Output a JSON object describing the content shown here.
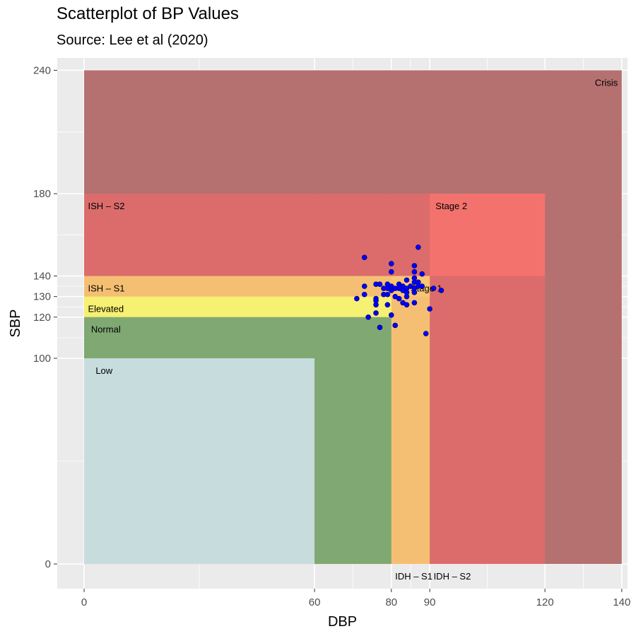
{
  "chart_data": {
    "type": "scatter",
    "title": "Scatterplot of BP Values",
    "subtitle": "Source: Lee et al (2020)",
    "xlabel": "DBP",
    "ylabel": "SBP",
    "xlim": [
      -7,
      141.5
    ],
    "ylim": [
      -12,
      246
    ],
    "x_ticks": [
      0,
      60,
      80,
      90,
      120,
      140
    ],
    "y_ticks": [
      0,
      100,
      120,
      130,
      140,
      180,
      240
    ],
    "grid": true,
    "legend": "none",
    "regions": [
      {
        "label": "Crisis",
        "x": [
          0,
          140
        ],
        "y": [
          0,
          240
        ],
        "color": "#b06565",
        "label_at": [
          133,
          234
        ]
      },
      {
        "label": "ISH – S2",
        "x": [
          0,
          120
        ],
        "y": [
          0,
          180
        ],
        "color": "#e06b6b",
        "label_at": [
          1,
          174
        ]
      },
      {
        "label": "Stage 2",
        "x": [
          90,
          120
        ],
        "y": [
          140,
          180
        ],
        "color": "#f5736f",
        "label_at": [
          91.5,
          174
        ]
      },
      {
        "label": "ISH – S1",
        "x": [
          0,
          90
        ],
        "y": [
          0,
          140
        ],
        "color": "#f6c774",
        "label_at": [
          1,
          134
        ]
      },
      {
        "label": "Stage 1",
        "x": [
          80,
          90
        ],
        "y": [
          130,
          140
        ],
        "color": "#f6c774",
        "label_at": [
          85,
          134
        ]
      },
      {
        "label": "Elevated",
        "x": [
          0,
          80
        ],
        "y": [
          120,
          130
        ],
        "color": "#f5f473",
        "label_at": [
          1,
          124
        ]
      },
      {
        "label": "Normal",
        "x": [
          0,
          80
        ],
        "y": [
          0,
          120
        ],
        "color": "#74a672",
        "label_at": [
          1.8,
          114
        ]
      },
      {
        "label": "Low",
        "x": [
          0,
          60
        ],
        "y": [
          0,
          100
        ],
        "color": "#cde1e6",
        "label_at": [
          3,
          94
        ]
      },
      {
        "label": "IDH – S1",
        "x": [
          80,
          90
        ],
        "y": [
          0,
          0
        ],
        "color": "#f6c774",
        "label_at": [
          81,
          -6
        ]
      },
      {
        "label": "IDH – S2",
        "x": [
          90,
          120
        ],
        "y": [
          0,
          0
        ],
        "color": "#e06b6b",
        "label_at": [
          91,
          -6
        ]
      }
    ],
    "point_color": "#0000ff",
    "points": [
      {
        "x": 73,
        "y": 149
      },
      {
        "x": 80,
        "y": 146
      },
      {
        "x": 87,
        "y": 154
      },
      {
        "x": 86,
        "y": 145
      },
      {
        "x": 80,
        "y": 142
      },
      {
        "x": 86,
        "y": 142
      },
      {
        "x": 88,
        "y": 141
      },
      {
        "x": 86,
        "y": 139
      },
      {
        "x": 84,
        "y": 138
      },
      {
        "x": 86,
        "y": 137
      },
      {
        "x": 87,
        "y": 137
      },
      {
        "x": 82,
        "y": 136
      },
      {
        "x": 76,
        "y": 136
      },
      {
        "x": 77,
        "y": 136
      },
      {
        "x": 79,
        "y": 136
      },
      {
        "x": 73,
        "y": 135
      },
      {
        "x": 80,
        "y": 135
      },
      {
        "x": 83,
        "y": 135
      },
      {
        "x": 85,
        "y": 135
      },
      {
        "x": 87,
        "y": 135
      },
      {
        "x": 88,
        "y": 135
      },
      {
        "x": 81,
        "y": 134
      },
      {
        "x": 78,
        "y": 134
      },
      {
        "x": 79,
        "y": 134
      },
      {
        "x": 80,
        "y": 133
      },
      {
        "x": 82,
        "y": 134
      },
      {
        "x": 84,
        "y": 134
      },
      {
        "x": 86,
        "y": 134
      },
      {
        "x": 91,
        "y": 134
      },
      {
        "x": 93,
        "y": 133
      },
      {
        "x": 83,
        "y": 133
      },
      {
        "x": 84,
        "y": 132
      },
      {
        "x": 86,
        "y": 132
      },
      {
        "x": 73,
        "y": 131
      },
      {
        "x": 78,
        "y": 131
      },
      {
        "x": 79,
        "y": 131
      },
      {
        "x": 81,
        "y": 130
      },
      {
        "x": 84,
        "y": 130
      },
      {
        "x": 71,
        "y": 129
      },
      {
        "x": 76,
        "y": 129
      },
      {
        "x": 82,
        "y": 129
      },
      {
        "x": 76,
        "y": 128
      },
      {
        "x": 86,
        "y": 127
      },
      {
        "x": 83,
        "y": 127
      },
      {
        "x": 76,
        "y": 126
      },
      {
        "x": 79,
        "y": 126
      },
      {
        "x": 84,
        "y": 126
      },
      {
        "x": 90,
        "y": 124
      },
      {
        "x": 76,
        "y": 122
      },
      {
        "x": 80,
        "y": 121
      },
      {
        "x": 74,
        "y": 120
      },
      {
        "x": 81,
        "y": 116
      },
      {
        "x": 77,
        "y": 115
      },
      {
        "x": 89,
        "y": 112
      }
    ]
  }
}
